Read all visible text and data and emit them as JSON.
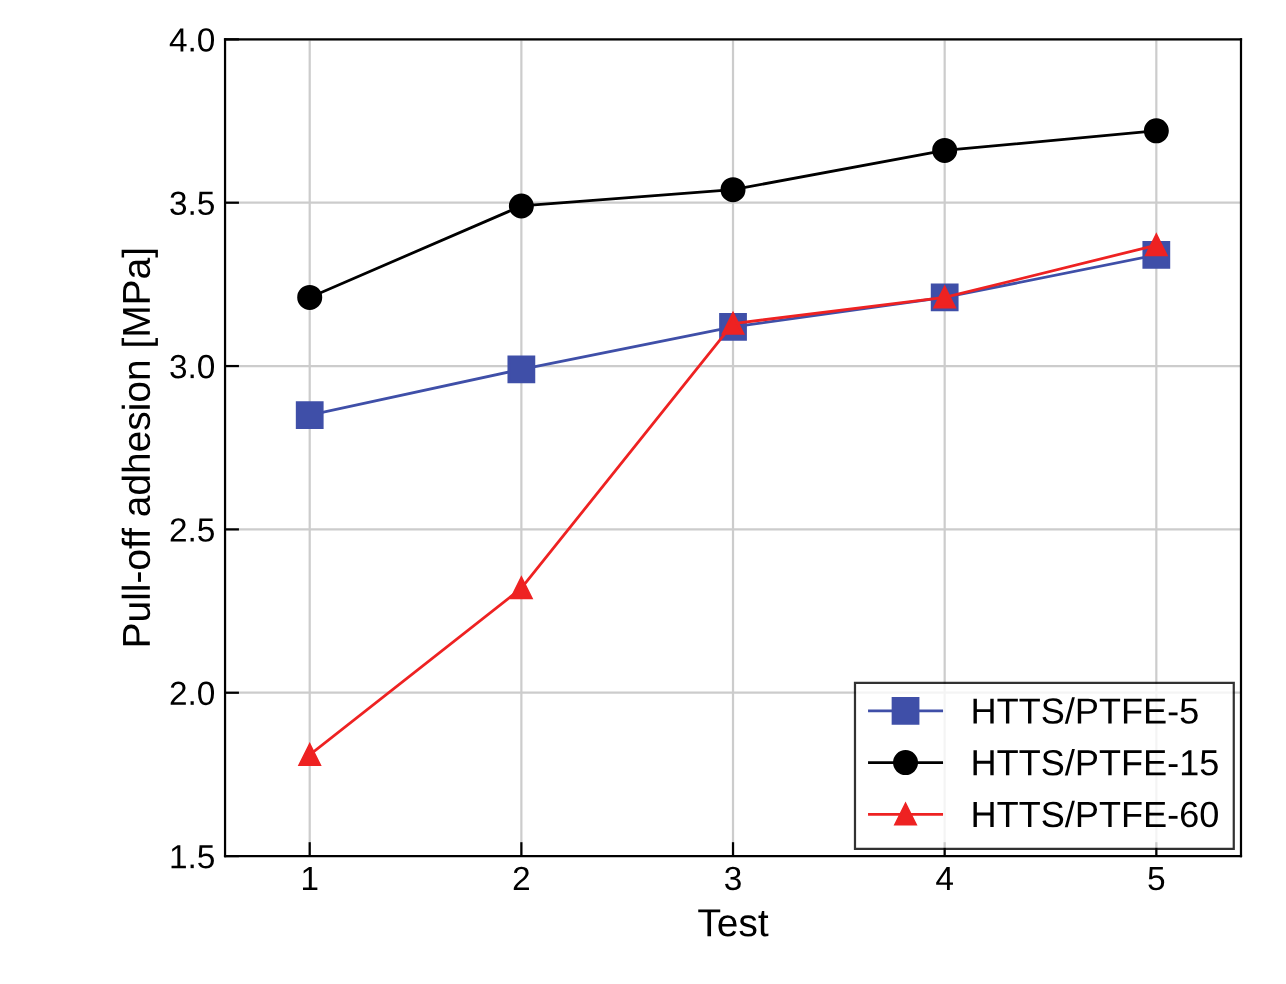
{
  "chart_data": {
    "type": "line",
    "xlabel": "Test",
    "ylabel": "Pull-off adhesion [MPa]",
    "x": [
      1,
      2,
      3,
      4,
      5
    ],
    "series": [
      {
        "name": "HTTS/PTFE-5",
        "color": "#3f4fa8",
        "marker": "square",
        "values": [
          2.85,
          2.99,
          3.12,
          3.21,
          3.34
        ]
      },
      {
        "name": "HTTS/PTFE-15",
        "color": "#000000",
        "marker": "circle",
        "values": [
          3.21,
          3.49,
          3.54,
          3.66,
          3.72
        ]
      },
      {
        "name": "HTTS/PTFE-60",
        "color": "#ee2222",
        "marker": "triangle",
        "values": [
          1.81,
          2.32,
          3.13,
          3.21,
          3.37
        ]
      }
    ],
    "xlim": [
      0.6,
      5.4
    ],
    "xticks": [
      1,
      2,
      3,
      4,
      5
    ],
    "ylim": [
      1.5,
      4.0
    ],
    "yticks": [
      1.5,
      {
        "value": 2,
        "label": "2.0"
      },
      2.5,
      {
        "value": 3,
        "label": "3.0"
      },
      3.5,
      {
        "value": 4,
        "label": "4.0"
      }
    ],
    "grid": true,
    "legend": "bottom right",
    "line_style": "solid"
  }
}
